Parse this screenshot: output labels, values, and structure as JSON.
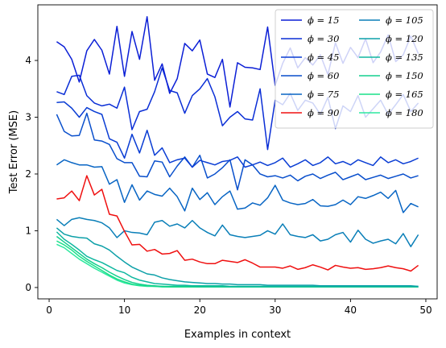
{
  "chart_data": {
    "type": "line",
    "title": "",
    "xlabel": "Examples in context",
    "ylabel": "Test Error (MSE)",
    "xlim": [
      -1.5,
      51.5
    ],
    "ylim": [
      -0.2,
      4.98
    ],
    "xticks": [
      0,
      10,
      20,
      30,
      40,
      50
    ],
    "yticks": [
      0,
      1,
      2,
      3,
      4
    ],
    "grid": false,
    "legend_position": "top-right",
    "legend_columns": 2,
    "x": [
      1,
      2,
      3,
      4,
      5,
      6,
      7,
      8,
      9,
      10,
      11,
      12,
      13,
      14,
      15,
      16,
      17,
      18,
      19,
      20,
      21,
      22,
      23,
      24,
      25,
      26,
      27,
      28,
      29,
      30,
      31,
      32,
      33,
      34,
      35,
      36,
      37,
      38,
      39,
      40,
      41,
      42,
      43,
      44,
      45,
      46,
      47,
      48,
      49
    ],
    "series": [
      {
        "name": "ϕ = 15",
        "color": "#0b1fd6",
        "values": [
          4.33,
          4.24,
          4.02,
          3.62,
          4.17,
          4.37,
          4.18,
          3.76,
          4.6,
          3.72,
          4.51,
          4.02,
          4.77,
          3.65,
          3.94,
          3.42,
          3.68,
          4.3,
          4.17,
          4.36,
          3.76,
          3.7,
          4.02,
          3.18,
          3.96,
          3.88,
          3.87,
          3.84,
          4.59,
          3.56,
          3.95,
          4.22,
          3.87,
          4.05,
          3.92,
          4.1,
          3.75,
          4.31,
          3.95,
          4.23,
          4.05,
          4.38,
          3.96,
          4.15,
          4.45,
          3.98,
          4.1,
          4.43,
          4.12
        ]
      },
      {
        "name": "ϕ = 30",
        "color": "#0a2ed6",
        "values": [
          3.45,
          3.4,
          3.72,
          3.74,
          3.38,
          3.25,
          3.2,
          3.23,
          3.16,
          3.53,
          2.78,
          3.1,
          3.14,
          3.45,
          3.87,
          3.47,
          3.43,
          3.07,
          3.38,
          3.5,
          3.68,
          3.36,
          2.85,
          3.0,
          3.1,
          2.97,
          2.95,
          3.5,
          2.43,
          3.3,
          3.22,
          3.42,
          3.12,
          3.3,
          3.25,
          3.05,
          3.35,
          2.8,
          3.2,
          3.1,
          3.38,
          3.0,
          3.15,
          3.3,
          3.05,
          3.22,
          3.4,
          3.1,
          3.25
        ]
      },
      {
        "name": "ϕ = 45",
        "color": "#0a3dd4",
        "values": [
          3.26,
          3.27,
          3.16,
          3.0,
          3.17,
          3.1,
          3.05,
          2.62,
          2.56,
          2.28,
          2.7,
          2.37,
          2.77,
          2.33,
          2.46,
          2.2,
          2.25,
          2.28,
          2.12,
          2.24,
          2.2,
          2.16,
          2.22,
          2.24,
          2.3,
          2.12,
          2.16,
          2.21,
          2.15,
          2.2,
          2.28,
          2.12,
          2.18,
          2.25,
          2.15,
          2.2,
          2.3,
          2.18,
          2.22,
          2.16,
          2.25,
          2.2,
          2.15,
          2.3,
          2.2,
          2.25,
          2.18,
          2.22,
          2.28
        ]
      },
      {
        "name": "ϕ = 60",
        "color": "#094fcc",
        "values": [
          3.05,
          2.75,
          2.67,
          2.68,
          3.07,
          2.6,
          2.58,
          2.52,
          2.27,
          2.2,
          2.2,
          1.96,
          1.95,
          2.23,
          2.21,
          1.95,
          2.14,
          2.3,
          2.12,
          2.33,
          1.93,
          2.0,
          2.11,
          2.25,
          1.72,
          2.25,
          2.16,
          2.0,
          1.95,
          1.97,
          1.93,
          1.98,
          1.88,
          1.96,
          2.0,
          1.92,
          1.98,
          2.03,
          1.9,
          1.95,
          2.0,
          1.9,
          1.94,
          1.98,
          1.92,
          1.96,
          2.0,
          1.93,
          1.97
        ]
      },
      {
        "name": "ϕ = 75",
        "color": "#0865c4",
        "values": [
          2.16,
          2.25,
          2.2,
          2.16,
          2.16,
          2.12,
          2.13,
          1.82,
          1.9,
          1.5,
          1.81,
          1.54,
          1.7,
          1.64,
          1.61,
          1.75,
          1.6,
          1.35,
          1.75,
          1.55,
          1.67,
          1.46,
          1.6,
          1.7,
          1.38,
          1.4,
          1.49,
          1.45,
          1.58,
          1.8,
          1.54,
          1.49,
          1.46,
          1.48,
          1.55,
          1.44,
          1.43,
          1.46,
          1.54,
          1.46,
          1.6,
          1.57,
          1.62,
          1.68,
          1.57,
          1.71,
          1.32,
          1.48,
          1.42
        ]
      },
      {
        "name": "ϕ = 90",
        "color": "#ef1010",
        "values": [
          1.56,
          1.58,
          1.7,
          1.53,
          1.97,
          1.63,
          1.73,
          1.29,
          1.26,
          0.99,
          0.75,
          0.76,
          0.64,
          0.67,
          0.59,
          0.6,
          0.65,
          0.48,
          0.5,
          0.45,
          0.42,
          0.42,
          0.48,
          0.46,
          0.44,
          0.49,
          0.43,
          0.36,
          0.36,
          0.36,
          0.34,
          0.38,
          0.32,
          0.35,
          0.4,
          0.36,
          0.31,
          0.39,
          0.36,
          0.34,
          0.35,
          0.32,
          0.33,
          0.35,
          0.38,
          0.35,
          0.33,
          0.29,
          0.39
        ]
      },
      {
        "name": "ϕ = 105",
        "color": "#0a7fb8",
        "values": [
          1.2,
          1.09,
          1.2,
          1.23,
          1.2,
          1.18,
          1.14,
          1.05,
          0.88,
          1.0,
          0.97,
          0.96,
          0.93,
          1.15,
          1.18,
          1.08,
          1.12,
          1.05,
          1.18,
          1.05,
          0.97,
          0.91,
          1.1,
          0.93,
          0.9,
          0.88,
          0.9,
          0.92,
          1.0,
          0.94,
          1.12,
          0.93,
          0.9,
          0.88,
          0.93,
          0.82,
          0.85,
          0.93,
          0.97,
          0.8,
          1.01,
          0.85,
          0.78,
          0.82,
          0.85,
          0.77,
          0.95,
          0.72,
          0.93
        ]
      },
      {
        "name": "ϕ = 120",
        "color": "#0da0a8",
        "values": [
          1.05,
          0.94,
          0.9,
          0.88,
          0.87,
          0.77,
          0.73,
          0.66,
          0.55,
          0.45,
          0.36,
          0.3,
          0.24,
          0.22,
          0.17,
          0.14,
          0.12,
          0.1,
          0.09,
          0.08,
          0.07,
          0.07,
          0.06,
          0.06,
          0.05,
          0.05,
          0.05,
          0.05,
          0.04,
          0.04,
          0.04,
          0.04,
          0.04,
          0.04,
          0.04,
          0.03,
          0.03,
          0.03,
          0.03,
          0.03,
          0.03,
          0.03,
          0.03,
          0.03,
          0.03,
          0.03,
          0.03,
          0.03,
          0.02
        ]
      },
      {
        "name": "ϕ = 135",
        "color": "#10b7a0",
        "values": [
          0.98,
          0.85,
          0.76,
          0.66,
          0.55,
          0.49,
          0.44,
          0.37,
          0.3,
          0.26,
          0.18,
          0.13,
          0.1,
          0.07,
          0.06,
          0.05,
          0.04,
          0.04,
          0.03,
          0.03,
          0.03,
          0.03,
          0.03,
          0.02,
          0.02,
          0.02,
          0.02,
          0.02,
          0.02,
          0.02,
          0.02,
          0.02,
          0.02,
          0.02,
          0.02,
          0.02,
          0.02,
          0.02,
          0.02,
          0.02,
          0.02,
          0.02,
          0.02,
          0.02,
          0.02,
          0.02,
          0.02,
          0.02,
          0.02
        ]
      },
      {
        "name": "ϕ = 150",
        "color": "#14cf8e",
        "values": [
          0.9,
          0.8,
          0.7,
          0.6,
          0.5,
          0.42,
          0.35,
          0.27,
          0.2,
          0.14,
          0.09,
          0.06,
          0.04,
          0.03,
          0.02,
          0.02,
          0.02,
          0.02,
          0.02,
          0.01,
          0.01,
          0.01,
          0.01,
          0.01,
          0.01,
          0.01,
          0.01,
          0.01,
          0.01,
          0.01,
          0.01,
          0.01,
          0.01,
          0.01,
          0.01,
          0.01,
          0.01,
          0.01,
          0.01,
          0.01,
          0.01,
          0.01,
          0.01,
          0.01,
          0.01,
          0.01,
          0.01,
          0.01,
          0.01
        ]
      },
      {
        "name": "ϕ = 165",
        "color": "#1ae089",
        "values": [
          0.82,
          0.75,
          0.66,
          0.55,
          0.46,
          0.38,
          0.3,
          0.22,
          0.15,
          0.1,
          0.06,
          0.04,
          0.03,
          0.02,
          0.02,
          0.01,
          0.01,
          0.01,
          0.01,
          0.01,
          0.01,
          0.01,
          0.01,
          0.01,
          0.01,
          0.01,
          0.01,
          0.01,
          0.01,
          0.01,
          0.01,
          0.01,
          0.01,
          0.01,
          0.01,
          0.01,
          0.01,
          0.01,
          0.01,
          0.01,
          0.01,
          0.01,
          0.01,
          0.01,
          0.01,
          0.01,
          0.01,
          0.01,
          0.01
        ]
      },
      {
        "name": "ϕ = 180",
        "color": "#2ee8a0",
        "values": [
          0.76,
          0.7,
          0.6,
          0.5,
          0.42,
          0.34,
          0.27,
          0.2,
          0.13,
          0.08,
          0.05,
          0.03,
          0.02,
          0.02,
          0.01,
          0.01,
          0.01,
          0.01,
          0.01,
          0.01,
          0.01,
          0.01,
          0.01,
          0.01,
          0.01,
          0.01,
          0.01,
          0.01,
          0.01,
          0.01,
          0.01,
          0.01,
          0.01,
          0.01,
          0.01,
          0.01,
          0.01,
          0.01,
          0.01,
          0.01,
          0.01,
          0.01,
          0.01,
          0.01,
          0.01,
          0.01,
          0.01,
          0.01,
          0.01
        ]
      }
    ]
  }
}
